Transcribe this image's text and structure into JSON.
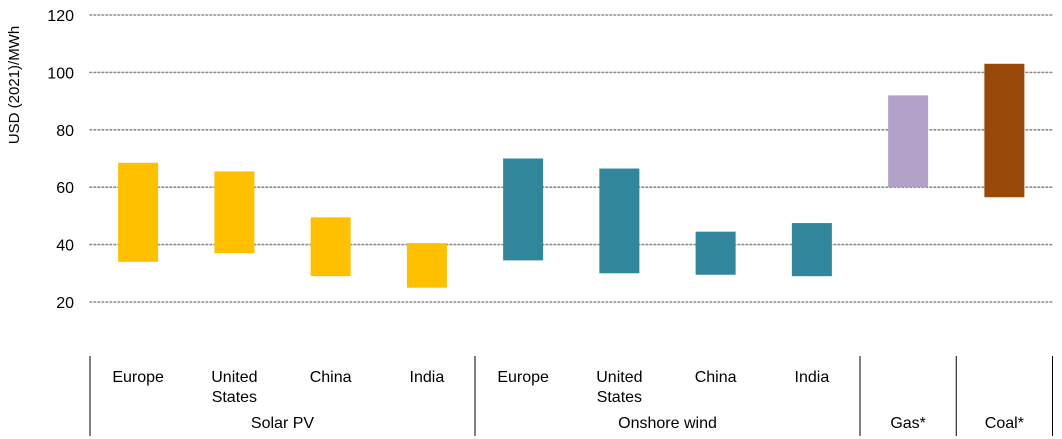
{
  "chart_data": {
    "type": "bar",
    "subtype": "floating-range",
    "ylabel": "USD (2021)/MWh",
    "ylim": [
      20,
      120
    ],
    "yticks": [
      20,
      40,
      60,
      80,
      100,
      120
    ],
    "grid": true,
    "groups": [
      {
        "label": "Solar PV",
        "color": "#FFC000",
        "categories": [
          {
            "label": [
              "Europe"
            ],
            "low": 34,
            "high": 68.5
          },
          {
            "label": [
              "United",
              "States"
            ],
            "low": 37,
            "high": 65.5
          },
          {
            "label": [
              "China"
            ],
            "low": 29,
            "high": 49.5
          },
          {
            "label": [
              "India"
            ],
            "low": 25,
            "high": 40.5
          }
        ]
      },
      {
        "label": "Onshore wind",
        "color": "#31869B",
        "categories": [
          {
            "label": [
              "Europe"
            ],
            "low": 34.5,
            "high": 70
          },
          {
            "label": [
              "United",
              "States"
            ],
            "low": 30,
            "high": 66.5
          },
          {
            "label": [
              "China"
            ],
            "low": 29.5,
            "high": 44.5
          },
          {
            "label": [
              "India"
            ],
            "low": 29,
            "high": 47.5
          }
        ]
      },
      {
        "label": "Gas*",
        "color": "#B3A2C7",
        "categories": [
          {
            "label": [],
            "low": 60,
            "high": 92
          }
        ]
      },
      {
        "label": "Coal*",
        "color": "#984807",
        "categories": [
          {
            "label": [],
            "low": 56.5,
            "high": 103
          }
        ]
      }
    ]
  }
}
